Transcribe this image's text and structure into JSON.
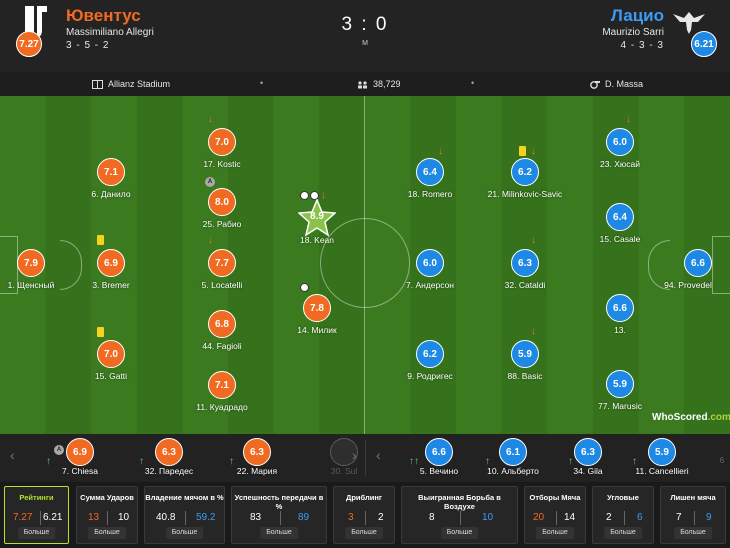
{
  "header": {
    "home": {
      "name": "Ювентус",
      "coach": "Massimiliano Allegri",
      "formation": "3 - 5 - 2",
      "rating": "7.27",
      "color": "#f06a22"
    },
    "away": {
      "name": "Лацио",
      "coach": "Maurizio Sarri",
      "formation": "4 - 3 - 3",
      "rating": "6.21",
      "color": "#1e88e5"
    },
    "score": "3 : 0",
    "status": "M"
  },
  "info": {
    "stadium": "Allianz Stadium",
    "attendance": "38,729",
    "referee": "D. Massa"
  },
  "pitch": {
    "home_players": [
      {
        "num": "1",
        "name": "1. Щенсный",
        "rating": "7.9"
      },
      {
        "num": "6",
        "name": "6. Данило",
        "rating": "7.1"
      },
      {
        "num": "3",
        "name": "3. Bremer",
        "rating": "6.9"
      },
      {
        "num": "15",
        "name": "15. Gatti",
        "rating": "7.0"
      },
      {
        "num": "17",
        "name": "17. Kostic",
        "rating": "7.0"
      },
      {
        "num": "25",
        "name": "25. Рабио",
        "rating": "8.0"
      },
      {
        "num": "5",
        "name": "5. Locatelli",
        "rating": "7.7"
      },
      {
        "num": "44",
        "name": "44. Fagioli",
        "rating": "6.8"
      },
      {
        "num": "11",
        "name": "11. Куадрадо",
        "rating": "7.1"
      },
      {
        "num": "18",
        "name": "18. Kean",
        "rating": "8.9"
      },
      {
        "num": "14",
        "name": "14. Милик",
        "rating": "7.8"
      }
    ],
    "away_players": [
      {
        "num": "18",
        "name": "18. Romero",
        "rating": "6.4"
      },
      {
        "num": "7",
        "name": "7. Андерсон",
        "rating": "6.0"
      },
      {
        "num": "9",
        "name": "9. Родригес",
        "rating": "6.2"
      },
      {
        "num": "21",
        "name": "21. Milinkovic-Savic",
        "rating": "6.2"
      },
      {
        "num": "32",
        "name": "32. Cataldi",
        "rating": "6.3"
      },
      {
        "num": "88",
        "name": "88. Basic",
        "rating": "5.9"
      },
      {
        "num": "23",
        "name": "23. Хюсай",
        "rating": "6.0"
      },
      {
        "num": "15",
        "name": "15. Casale",
        "rating": "6.4"
      },
      {
        "num": "13",
        "name": "13.",
        "rating": "6.6"
      },
      {
        "num": "77",
        "name": "77. Marusic",
        "rating": "5.9"
      },
      {
        "num": "94",
        "name": "94. Provedel",
        "rating": "6.6"
      }
    ],
    "captain_mark": "A",
    "watermark_main": "WhoScored",
    "watermark_suffix": ".com"
  },
  "bench": {
    "home": [
      {
        "name": "7. Chiesa",
        "rating": "6.9"
      },
      {
        "name": "32. Паредес",
        "rating": "6.3"
      },
      {
        "name": "22. Мария",
        "rating": "6.3"
      },
      {
        "name": "30. Sul",
        "rating": ""
      }
    ],
    "away": [
      {
        "name": "5. Вечино",
        "rating": "6.6"
      },
      {
        "name": "10. Альберто",
        "rating": "6.1"
      },
      {
        "name": "34. Gila",
        "rating": "6.3"
      },
      {
        "name": "11. Cancellieri",
        "rating": "5.9"
      },
      {
        "name": "6",
        "rating": ""
      }
    ]
  },
  "stats": [
    {
      "title": "Рейтинги",
      "home": "7.27",
      "away": "6.21",
      "more": "Больше"
    },
    {
      "title": "Сумма Ударов",
      "home": "13",
      "away": "10",
      "more": "Больше"
    },
    {
      "title": "Владение мячом в %",
      "home": "40.8",
      "away": "59.2",
      "more": "Больше"
    },
    {
      "title": "Успешность передачи в %",
      "home": "83",
      "away": "89",
      "more": "Больше"
    },
    {
      "title": "Дриблинг",
      "home": "3",
      "away": "2",
      "more": "Больше"
    },
    {
      "title": "Выигранная Борьба в Воздухе",
      "home": "8",
      "away": "10",
      "more": "Больше"
    },
    {
      "title": "Отборы Мяча",
      "home": "20",
      "away": "14",
      "more": "Больше"
    },
    {
      "title": "Угловые",
      "home": "2",
      "away": "6",
      "more": "Больше"
    },
    {
      "title": "Лишен мяча",
      "home": "7",
      "away": "9",
      "more": "Больше"
    }
  ]
}
